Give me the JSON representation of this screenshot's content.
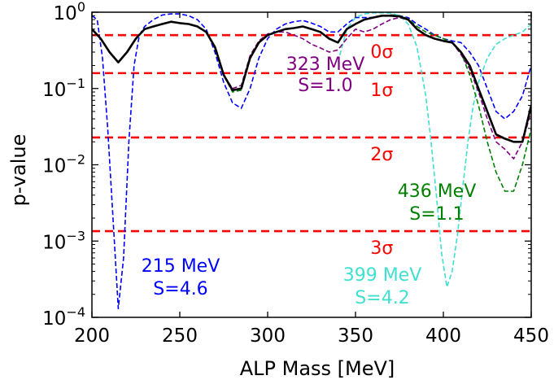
{
  "chart_data": {
    "type": "line",
    "xlabel": "ALP Mass [MeV]",
    "ylabel": "p-value",
    "xlim": [
      200,
      450
    ],
    "ylim": [
      0.0001,
      1
    ],
    "yscale": "log",
    "grid": false,
    "legend": "none",
    "x_ticks": [
      "200",
      "250",
      "300",
      "350",
      "400",
      "450"
    ],
    "y_ticks": [
      {
        "value": 0.0001,
        "base": "10",
        "exp": "−4"
      },
      {
        "value": 0.001,
        "base": "10",
        "exp": "−3"
      },
      {
        "value": 0.01,
        "base": "10",
        "exp": "−2"
      },
      {
        "value": 0.1,
        "base": "10",
        "exp": "−1"
      },
      {
        "value": 1,
        "base": "10",
        "exp": "0"
      }
    ],
    "sigma_lines": [
      {
        "label": "0σ",
        "p": 0.5
      },
      {
        "label": "1σ",
        "p": 0.159
      },
      {
        "label": "2σ",
        "p": 0.0228
      },
      {
        "label": "3σ",
        "p": 0.00135
      }
    ],
    "series": [
      {
        "color": "#000000",
        "style": "solid",
        "x": [
          200,
          205,
          210,
          215,
          220,
          225,
          230,
          235,
          240,
          245,
          250,
          255,
          260,
          265,
          270,
          275,
          280,
          285,
          290,
          295,
          300,
          305,
          310,
          315,
          320,
          325,
          330,
          335,
          340,
          345,
          350,
          355,
          360,
          365,
          370,
          375,
          380,
          385,
          390,
          395,
          400,
          405,
          410,
          415,
          420,
          425,
          430,
          435,
          440,
          445,
          450
        ],
        "y": [
          0.6,
          0.45,
          0.3,
          0.22,
          0.3,
          0.45,
          0.6,
          0.65,
          0.7,
          0.75,
          0.72,
          0.7,
          0.65,
          0.55,
          0.35,
          0.15,
          0.095,
          0.1,
          0.25,
          0.4,
          0.5,
          0.55,
          0.6,
          0.62,
          0.65,
          0.6,
          0.55,
          0.45,
          0.4,
          0.6,
          0.7,
          0.8,
          0.85,
          0.9,
          0.9,
          0.88,
          0.8,
          0.6,
          0.5,
          0.45,
          0.42,
          0.4,
          0.3,
          0.2,
          0.1,
          0.05,
          0.025,
          0.022,
          0.02,
          0.02,
          0.06
        ]
      },
      {
        "color": "#008000",
        "style": "dashed",
        "x": [
          200,
          205,
          210,
          215,
          220,
          225,
          230,
          235,
          240,
          245,
          250,
          255,
          260,
          265,
          270,
          275,
          280,
          285,
          290,
          295,
          300,
          305,
          310,
          315,
          320,
          325,
          330,
          335,
          340,
          345,
          350,
          355,
          360,
          365,
          370,
          375,
          380,
          385,
          390,
          395,
          400,
          405,
          410,
          415,
          420,
          425,
          430,
          435,
          440,
          445,
          450
        ],
        "y": [
          0.6,
          0.45,
          0.3,
          0.22,
          0.3,
          0.45,
          0.6,
          0.65,
          0.7,
          0.75,
          0.72,
          0.7,
          0.65,
          0.55,
          0.35,
          0.15,
          0.09,
          0.095,
          0.25,
          0.4,
          0.5,
          0.55,
          0.6,
          0.62,
          0.65,
          0.6,
          0.55,
          0.45,
          0.4,
          0.6,
          0.7,
          0.8,
          0.85,
          0.9,
          0.92,
          0.9,
          0.82,
          0.65,
          0.55,
          0.5,
          0.45,
          0.4,
          0.3,
          0.15,
          0.06,
          0.02,
          0.008,
          0.0045,
          0.0045,
          0.01,
          0.03
        ]
      },
      {
        "color": "#800080",
        "style": "dashed",
        "x": [
          200,
          205,
          210,
          215,
          220,
          225,
          230,
          235,
          240,
          245,
          250,
          255,
          260,
          265,
          270,
          275,
          280,
          285,
          290,
          295,
          300,
          305,
          310,
          315,
          320,
          325,
          330,
          335,
          340,
          345,
          350,
          355,
          360,
          365,
          370,
          375,
          380,
          385,
          390,
          395,
          400,
          405,
          410,
          415,
          420,
          425,
          430,
          435,
          440,
          445,
          450
        ],
        "y": [
          0.6,
          0.45,
          0.3,
          0.22,
          0.3,
          0.45,
          0.6,
          0.65,
          0.7,
          0.75,
          0.72,
          0.7,
          0.65,
          0.55,
          0.35,
          0.15,
          0.1,
          0.11,
          0.27,
          0.42,
          0.52,
          0.55,
          0.55,
          0.5,
          0.45,
          0.38,
          0.34,
          0.3,
          0.32,
          0.45,
          0.6,
          0.55,
          0.6,
          0.7,
          0.8,
          0.85,
          0.8,
          0.6,
          0.5,
          0.45,
          0.42,
          0.4,
          0.28,
          0.18,
          0.09,
          0.04,
          0.02,
          0.016,
          0.012,
          0.02,
          0.05
        ]
      },
      {
        "color": "#0000ff",
        "style": "dashed",
        "x": [
          200,
          203,
          206,
          209,
          212,
          215,
          218,
          221,
          224,
          227,
          230,
          235,
          240,
          245,
          250,
          255,
          260,
          265,
          270,
          275,
          280,
          285,
          290,
          295,
          300,
          305,
          310,
          315,
          320,
          325,
          330,
          335,
          340,
          345,
          350,
          355,
          360,
          365,
          370,
          375,
          380,
          385,
          390,
          395,
          400,
          405,
          410,
          415,
          420,
          425,
          430,
          435,
          440,
          445,
          450
        ],
        "y": [
          0.9,
          0.8,
          0.25,
          0.03,
          0.002,
          0.00013,
          0.0006,
          0.02,
          0.2,
          0.5,
          0.65,
          0.8,
          0.92,
          0.95,
          0.95,
          0.9,
          0.8,
          0.6,
          0.3,
          0.12,
          0.065,
          0.055,
          0.1,
          0.25,
          0.45,
          0.6,
          0.7,
          0.75,
          0.78,
          0.72,
          0.65,
          0.55,
          0.55,
          0.7,
          0.85,
          0.85,
          0.85,
          0.9,
          0.92,
          0.9,
          0.85,
          0.7,
          0.6,
          0.5,
          0.45,
          0.42,
          0.4,
          0.3,
          0.2,
          0.1,
          0.05,
          0.04,
          0.05,
          0.08,
          0.2
        ]
      },
      {
        "color": "#40e0d0",
        "style": "dashed",
        "x": [
          340,
          345,
          350,
          355,
          360,
          365,
          370,
          375,
          380,
          385,
          390,
          393,
          396,
          399,
          402,
          405,
          408,
          411,
          414,
          417,
          420,
          425,
          430,
          435,
          440,
          445,
          450
        ],
        "y": [
          0.22,
          0.6,
          0.85,
          0.95,
          0.98,
          0.98,
          0.97,
          0.9,
          0.7,
          0.35,
          0.08,
          0.02,
          0.004,
          0.0007,
          0.00025,
          0.0004,
          0.0012,
          0.005,
          0.02,
          0.06,
          0.12,
          0.25,
          0.38,
          0.45,
          0.5,
          0.55,
          0.7
        ]
      }
    ],
    "annotations": [
      {
        "line1": "215 MeV",
        "line2": "S=4.6",
        "color": "#0000ff"
      },
      {
        "line1": "323 MeV",
        "line2": "S=1.0",
        "color": "#800080"
      },
      {
        "line1": "436 MeV",
        "line2": "S=1.1",
        "color": "#008000"
      },
      {
        "line1": "399 MeV",
        "line2": "S=4.2",
        "color": "#40e0d0"
      }
    ],
    "sigma_color": "#ff0000"
  }
}
